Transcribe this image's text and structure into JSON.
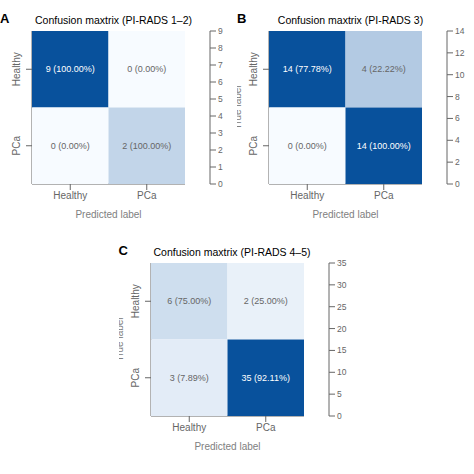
{
  "chart_data": [
    {
      "type": "heatmap",
      "annotation": "A",
      "title": "Confusion maxtrix (PI-RADS 1–2)",
      "xlabel": "Predicted label",
      "categories": [
        "Healthy",
        "PCa"
      ],
      "y_categories": [
        "Healthy",
        "PCa"
      ],
      "values": [
        [
          9,
          0
        ],
        [
          0,
          2
        ]
      ],
      "value_labels": [
        [
          "9 (100.00%)",
          "0 (0.00%)"
        ],
        [
          "0 (0.00%)",
          "2 (100.00%)"
        ]
      ],
      "data_labels": true,
      "color": "#08519c",
      "color_range": [
        0,
        9
      ],
      "color_ticks": [
        0,
        1,
        2,
        3,
        4,
        5,
        6,
        7,
        8,
        9
      ]
    },
    {
      "type": "heatmap",
      "annotation": "B",
      "title": "Confusion maxtrix (PI-RADS 3)",
      "xlabel": "Predicted label",
      "ylabel": "True label",
      "categories": [
        "Healthy",
        "PCa"
      ],
      "y_categories": [
        "Healthy",
        "PCa"
      ],
      "values": [
        [
          14,
          4
        ],
        [
          0,
          14
        ]
      ],
      "value_labels": [
        [
          "14 (77.78%)",
          "4 (22.22%)"
        ],
        [
          "0 (0.00%)",
          "14 (100.00%)"
        ]
      ],
      "data_labels": true,
      "color": "#08519c",
      "color_range": [
        0,
        14
      ],
      "color_ticks": [
        0,
        2,
        4,
        6,
        8,
        10,
        12,
        14
      ]
    },
    {
      "type": "heatmap",
      "annotation": "C",
      "title": "Confusion maxtrix (PI-RADS 4–5)",
      "xlabel": "Predicted label",
      "ylabel": "True label",
      "categories": [
        "Healthy",
        "PCa"
      ],
      "y_categories": [
        "Healthy",
        "PCa"
      ],
      "values": [
        [
          6,
          2
        ],
        [
          3,
          35
        ]
      ],
      "value_labels": [
        [
          "6 (75.00%)",
          "2 (25.00%)"
        ],
        [
          "3 (7.89%)",
          "35 (92.11%)"
        ]
      ],
      "data_labels": true,
      "color": "#08519c",
      "color_range": [
        0,
        35
      ],
      "color_ticks": [
        0,
        5,
        10,
        15,
        20,
        25,
        30,
        35
      ]
    }
  ]
}
